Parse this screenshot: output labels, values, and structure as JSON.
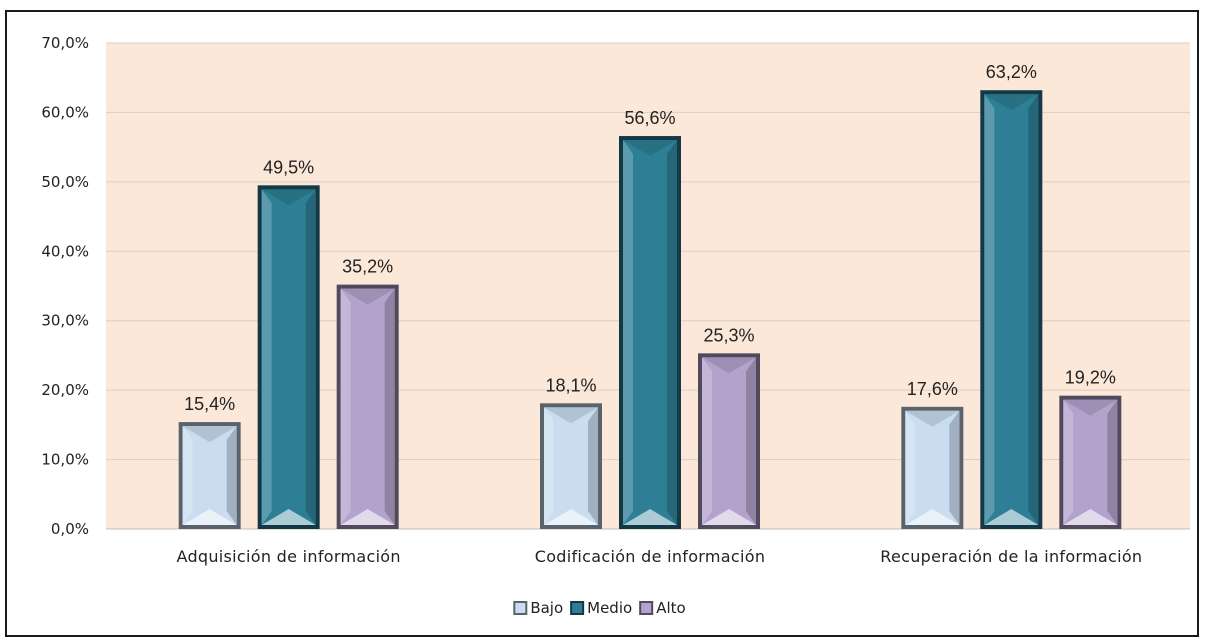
{
  "chart_data": {
    "type": "bar",
    "title": "",
    "xlabel": "",
    "ylabel": "",
    "categories": [
      "Adquisición de información",
      "Codificación de información",
      "Recuperación de la información"
    ],
    "series": [
      {
        "name": "Bajo",
        "values": [
          15.4,
          18.1,
          17.6
        ],
        "labels": [
          "15,4%",
          "18,1%",
          "17,6%"
        ],
        "color": "#c9dcf0"
      },
      {
        "name": "Medio",
        "values": [
          49.5,
          56.6,
          63.2
        ],
        "labels": [
          "49,5%",
          "56,6%",
          "63,2%"
        ],
        "color": "#2e7f96"
      },
      {
        "name": "Alto",
        "values": [
          35.2,
          25.3,
          19.2
        ],
        "labels": [
          "35,2%",
          "25,3%",
          "19,2%"
        ],
        "color": "#b3a2cc"
      }
    ],
    "ylim": [
      0,
      70
    ],
    "yticks": [
      0,
      10,
      20,
      30,
      40,
      50,
      60,
      70
    ],
    "ytick_labels": [
      "0,0%",
      "10,0%",
      "20,0%",
      "30,0%",
      "40,0%",
      "50,0%",
      "60,0%",
      "70,0%"
    ],
    "grid": true,
    "legend_position": "bottom-center",
    "plot_background": "#fce8d9"
  }
}
